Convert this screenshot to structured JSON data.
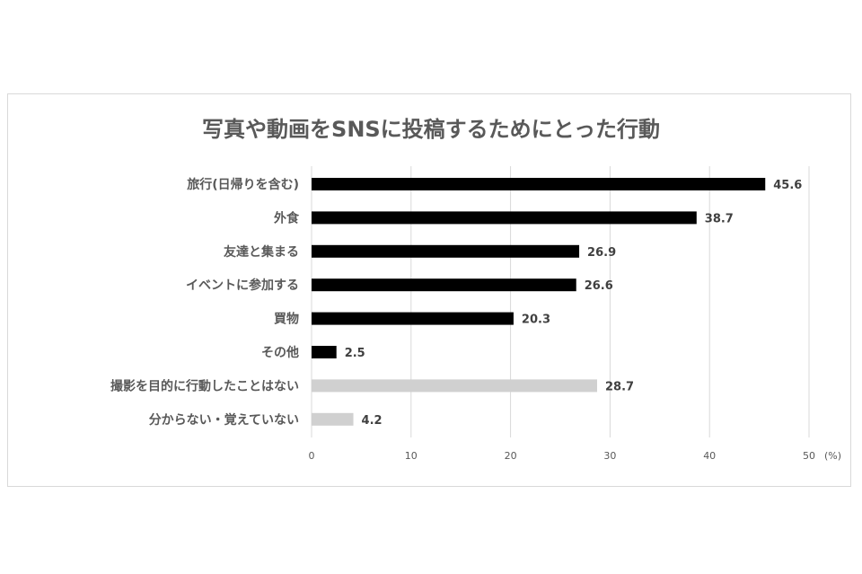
{
  "chart_data": {
    "type": "bar",
    "orientation": "horizontal",
    "title": "写真や動画をSNSに投稿するためにとった行動",
    "categories": [
      "旅行(日帰りを含む)",
      "外食",
      "友達と集まる",
      "イベントに参加する",
      "買物",
      "その他",
      "撮影を目的に行動したことはない",
      "分からない・覚えていない"
    ],
    "values": [
      45.6,
      38.7,
      26.9,
      26.6,
      20.3,
      2.5,
      28.7,
      4.2
    ],
    "bar_colors": [
      "#000000",
      "#000000",
      "#000000",
      "#000000",
      "#000000",
      "#000000",
      "#d0d0d0",
      "#d0d0d0"
    ],
    "xlim": [
      0,
      50
    ],
    "xticks": [
      "0",
      "10",
      "20",
      "30",
      "40",
      "50"
    ],
    "xunit": "(%)",
    "grid": true,
    "data_labels": true
  }
}
